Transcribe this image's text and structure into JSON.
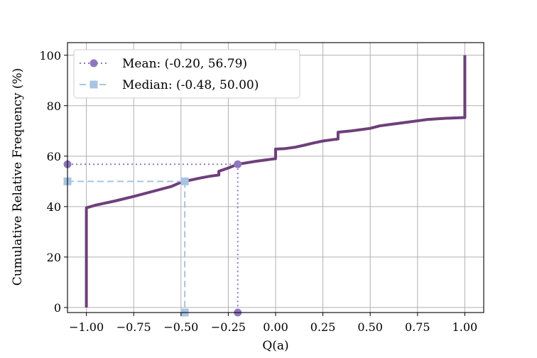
{
  "chart_data": {
    "type": "line",
    "title": "",
    "xlabel": "Q(a)",
    "ylabel": "Cumulative Relative Frequency (%)",
    "xlim": [
      -1.1,
      1.1
    ],
    "ylim": [
      -2,
      105
    ],
    "grid": true,
    "legend_position": "top-left",
    "x_ticks": [
      -1.0,
      -0.75,
      -0.5,
      -0.25,
      0.0,
      0.25,
      0.5,
      0.75,
      1.0
    ],
    "x_tick_labels": [
      "−1.00",
      "−0.75",
      "−0.50",
      "−0.25",
      "0.00",
      "0.25",
      "0.50",
      "0.75",
      "1.00"
    ],
    "y_ticks": [
      0,
      20,
      40,
      60,
      80,
      100
    ],
    "y_tick_labels": [
      "0",
      "20",
      "40",
      "60",
      "80",
      "100"
    ],
    "series": [
      {
        "color": "#6e3f7a",
        "style": "solid",
        "x": [
          -1.0,
          -1.0,
          -1.0,
          -0.95,
          -0.85,
          -0.75,
          -0.65,
          -0.55,
          -0.5,
          -0.45,
          -0.4,
          -0.35,
          -0.3,
          -0.3,
          -0.25,
          -0.2,
          -0.1,
          -0.05,
          0.0,
          0.0,
          0.05,
          0.1,
          0.15,
          0.2,
          0.25,
          0.3,
          0.33,
          0.33,
          0.4,
          0.45,
          0.5,
          0.55,
          0.6,
          0.65,
          0.7,
          0.8,
          0.9,
          1.0,
          1.0
        ],
        "y": [
          0,
          39.5,
          39.5,
          40.6,
          42.2,
          44.0,
          46.0,
          48.0,
          49.6,
          50.5,
          51.3,
          52.0,
          52.5,
          54.0,
          55.3,
          56.8,
          58.0,
          58.5,
          59.0,
          62.8,
          63.0,
          63.5,
          64.3,
          65.2,
          66.0,
          66.5,
          66.8,
          69.5,
          70.0,
          70.5,
          71.0,
          72.0,
          72.5,
          73.0,
          73.5,
          74.5,
          75.0,
          75.3,
          100
        ]
      }
    ],
    "reference_lines": [
      {
        "name": "Mean: (-0.20, 56.79)",
        "x": -0.2,
        "y": 56.79,
        "color": "#8f77bd",
        "style": "dotted",
        "marker": "circle"
      },
      {
        "name": "Median: (-0.48, 50.00)",
        "x": -0.48,
        "y": 50.0,
        "color": "#a8c4e2",
        "style": "dashed",
        "marker": "square"
      }
    ]
  }
}
